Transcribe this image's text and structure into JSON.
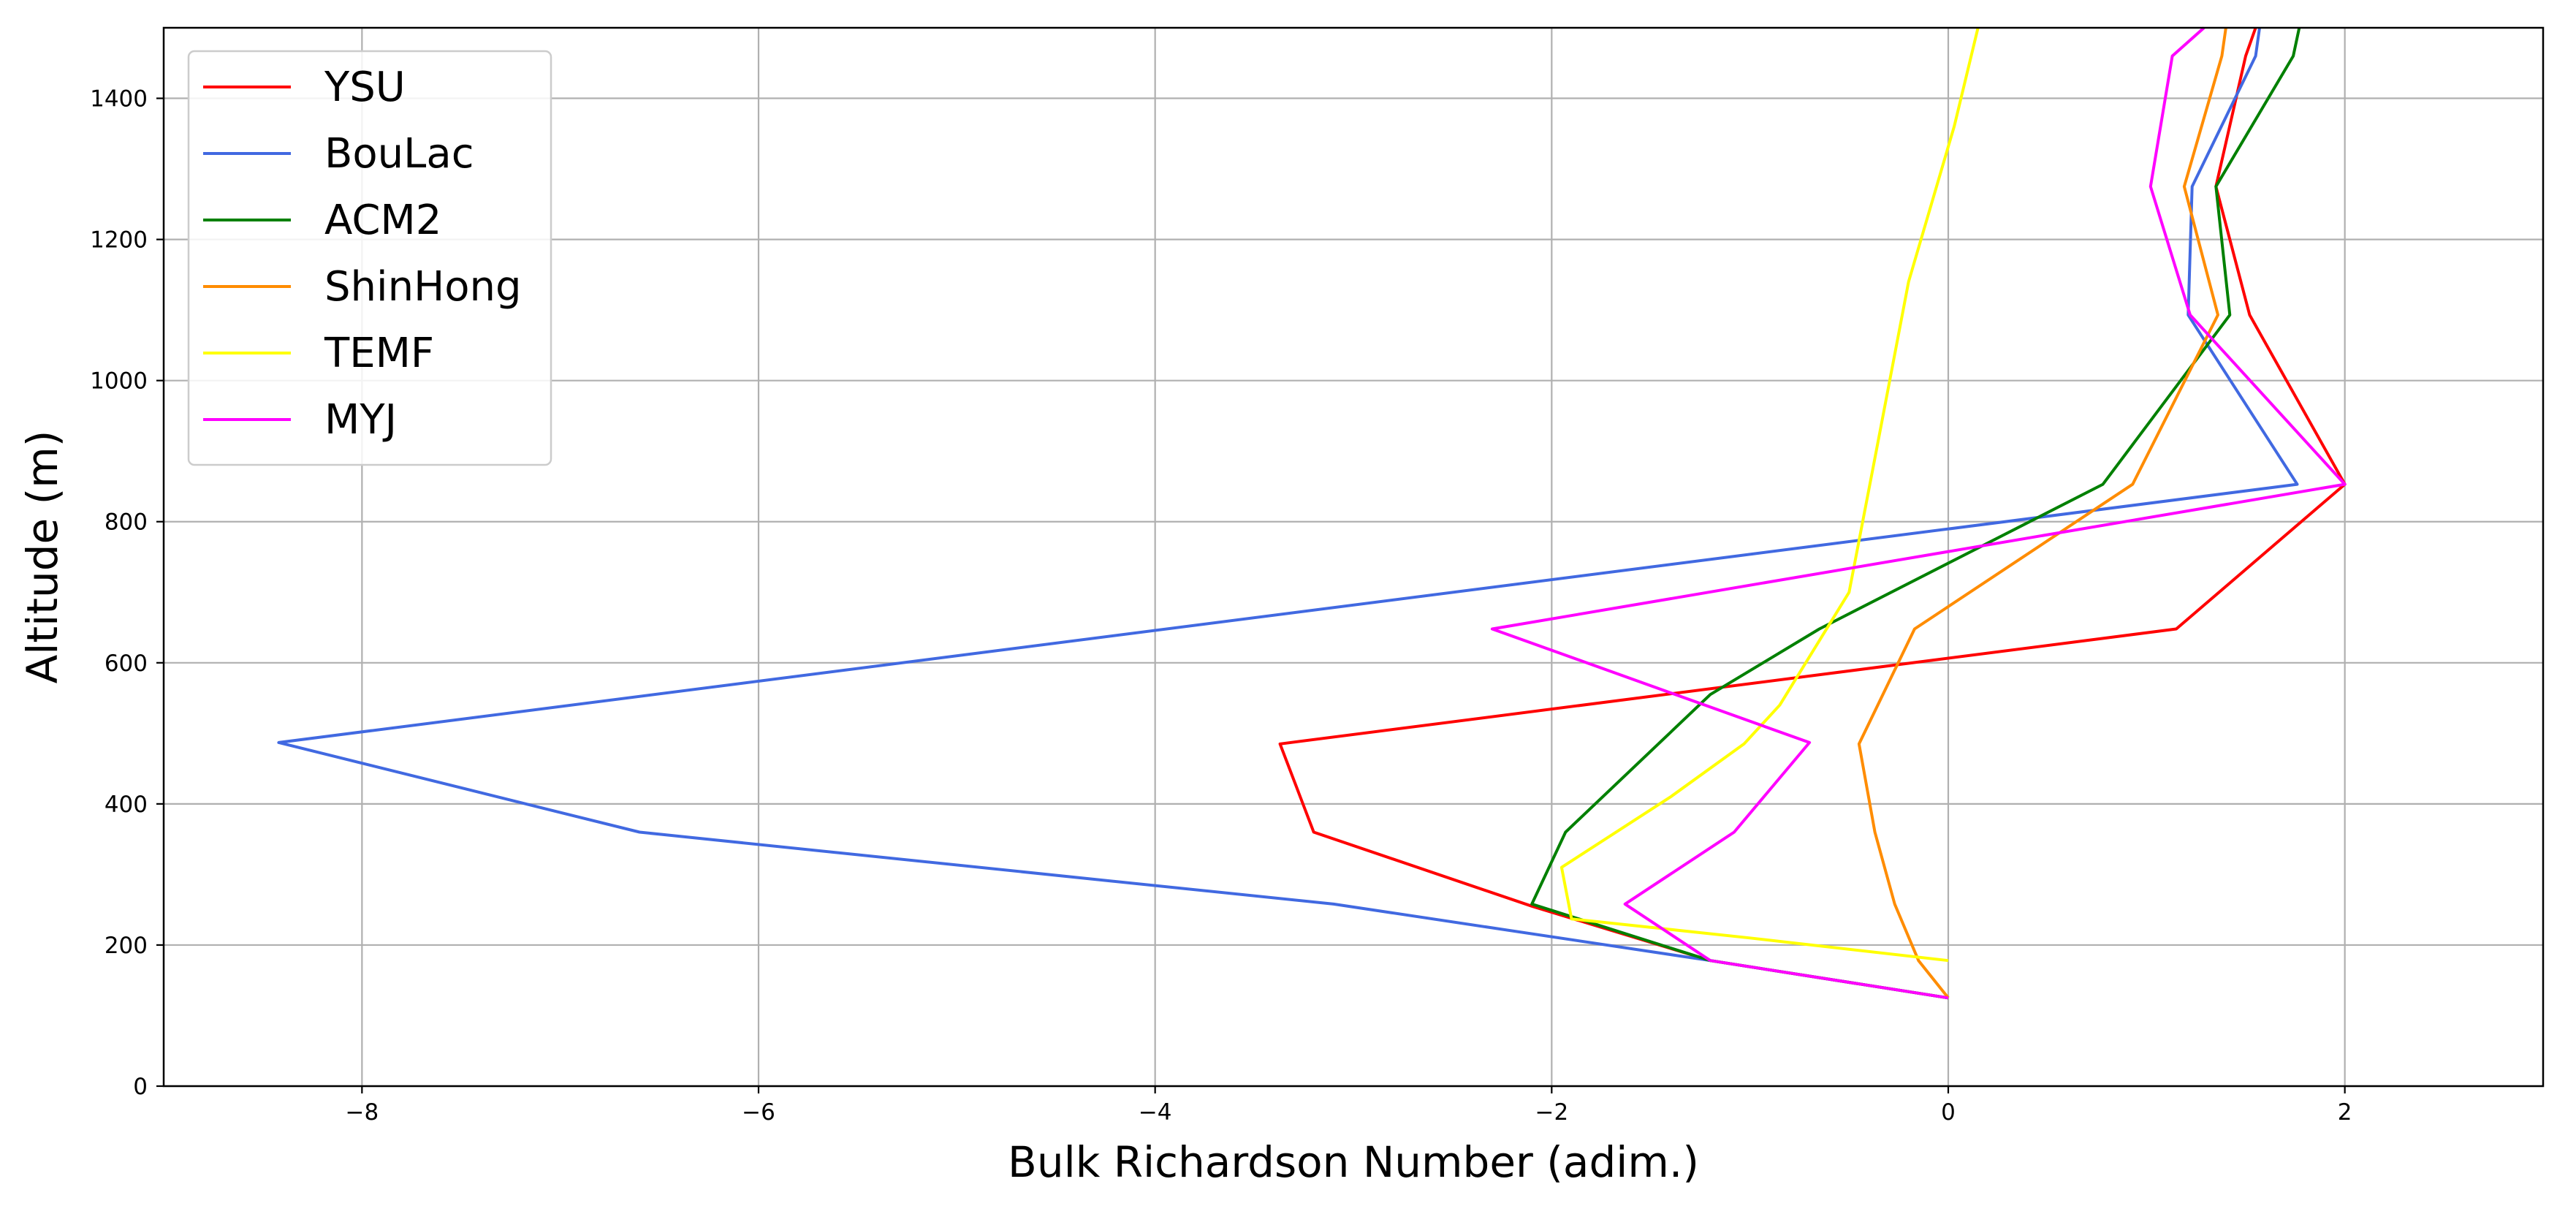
{
  "chart_data": {
    "type": "line",
    "title": "",
    "xlabel": "Bulk Richardson Number (adim.)",
    "ylabel": "Altitude (m)",
    "xlim": [
      -9,
      3
    ],
    "ylim": [
      0,
      1500
    ],
    "xticks": [
      -8,
      -6,
      -4,
      -2,
      0,
      2
    ],
    "xtick_labels": [
      "−8",
      "−6",
      "−4",
      "−2",
      "0",
      "2"
    ],
    "yticks": [
      0,
      200,
      400,
      600,
      800,
      1000,
      1200,
      1400
    ],
    "ytick_labels": [
      "0",
      "200",
      "400",
      "600",
      "800",
      "1000",
      "1200",
      "1400"
    ],
    "grid": true,
    "legend_position": "top-left",
    "series": [
      {
        "name": "YSU",
        "color": "#ff0000",
        "points": [
          [
            0,
            125
          ],
          [
            -1.2,
            178
          ],
          [
            -2.1,
            255
          ],
          [
            -3.2,
            360
          ],
          [
            -3.37,
            485
          ],
          [
            1.15,
            648
          ],
          [
            2.0,
            853
          ],
          [
            1.52,
            1093
          ],
          [
            1.35,
            1275
          ],
          [
            1.5,
            1460
          ],
          [
            1.55,
            1500
          ]
        ]
      },
      {
        "name": "BouLac",
        "color": "#4169e1",
        "points": [
          [
            0,
            125
          ],
          [
            -1.2,
            178
          ],
          [
            -3.1,
            258
          ],
          [
            -6.6,
            360
          ],
          [
            -8.42,
            487
          ],
          [
            1.76,
            853
          ],
          [
            1.21,
            1093
          ],
          [
            1.23,
            1275
          ],
          [
            1.55,
            1460
          ],
          [
            1.57,
            1500
          ]
        ]
      },
      {
        "name": "ACM2",
        "color": "#008000",
        "points": [
          [
            0,
            125
          ],
          [
            -1.2,
            178
          ],
          [
            -2.1,
            258
          ],
          [
            -1.93,
            360
          ],
          [
            -1.2,
            555
          ],
          [
            -0.65,
            648
          ],
          [
            0.78,
            853
          ],
          [
            1.42,
            1093
          ],
          [
            1.35,
            1275
          ],
          [
            1.74,
            1460
          ],
          [
            1.77,
            1500
          ]
        ]
      },
      {
        "name": "ShinHong",
        "color": "#ff8c00",
        "points": [
          [
            0,
            125
          ],
          [
            -0.15,
            178
          ],
          [
            -0.27,
            258
          ],
          [
            -0.37,
            360
          ],
          [
            -0.45,
            485
          ],
          [
            -0.17,
            648
          ],
          [
            0.93,
            853
          ],
          [
            1.36,
            1093
          ],
          [
            1.19,
            1275
          ],
          [
            1.38,
            1460
          ],
          [
            1.4,
            1500
          ]
        ]
      },
      {
        "name": "TEMF",
        "color": "#ffff00",
        "points": [
          [
            0,
            178
          ],
          [
            -1.0,
            210
          ],
          [
            -1.9,
            237
          ],
          [
            -1.95,
            310
          ],
          [
            -1.4,
            410
          ],
          [
            -1.03,
            485
          ],
          [
            -0.85,
            540
          ],
          [
            -0.5,
            700
          ],
          [
            -0.37,
            890
          ],
          [
            -0.2,
            1140
          ],
          [
            0.03,
            1360
          ],
          [
            0.15,
            1500
          ]
        ]
      },
      {
        "name": "MYJ",
        "color": "#ff00ff",
        "points": [
          [
            0,
            125
          ],
          [
            -1.2,
            178
          ],
          [
            -1.63,
            258
          ],
          [
            -1.08,
            360
          ],
          [
            -0.7,
            487
          ],
          [
            -2.3,
            648
          ],
          [
            2.0,
            853
          ],
          [
            1.22,
            1093
          ],
          [
            1.02,
            1275
          ],
          [
            1.13,
            1460
          ],
          [
            1.29,
            1500
          ]
        ]
      }
    ]
  }
}
